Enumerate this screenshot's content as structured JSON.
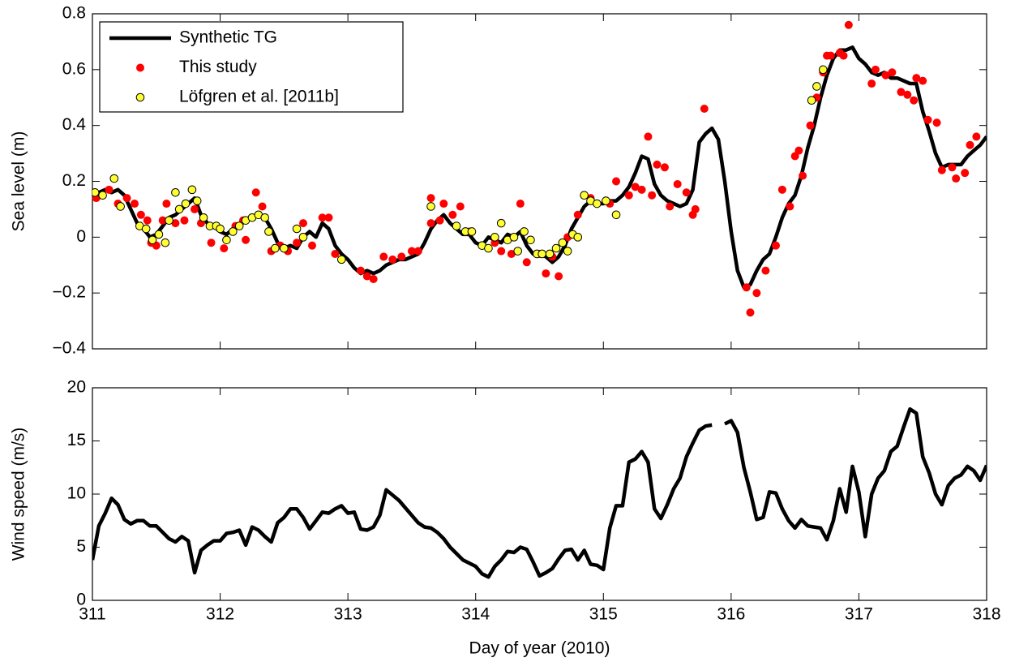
{
  "chart_data": [
    {
      "type": "line",
      "ylabel": "Sea level (m)",
      "xlim": [
        311,
        318
      ],
      "xticks": [
        311,
        312,
        313,
        314,
        315,
        316,
        317,
        318
      ],
      "xtick_labels": false,
      "ylim": [
        -0.4,
        0.8
      ],
      "yticks": [
        {
          "value": -0.4,
          "label": "−0.4"
        },
        {
          "value": -0.2,
          "label": "−0.2"
        },
        0,
        0.2,
        0.4,
        0.6,
        0.8
      ],
      "legend": "upper left",
      "x": [
        311,
        311.05,
        311.1,
        311.15,
        311.2,
        311.25,
        311.3,
        311.35,
        311.4,
        311.45,
        311.5,
        311.55,
        311.6,
        311.65,
        311.7,
        311.75,
        311.8,
        311.85,
        311.9,
        311.95,
        312,
        312.05,
        312.1,
        312.15,
        312.2,
        312.25,
        312.3,
        312.35,
        312.4,
        312.45,
        312.5,
        312.55,
        312.6,
        312.65,
        312.7,
        312.75,
        312.8,
        312.85,
        312.9,
        312.95,
        313,
        313.05,
        313.1,
        313.15,
        313.2,
        313.25,
        313.3,
        313.35,
        313.4,
        313.45,
        313.5,
        313.55,
        313.6,
        313.65,
        313.7,
        313.75,
        313.8,
        313.85,
        313.9,
        313.95,
        314,
        314.05,
        314.1,
        314.15,
        314.2,
        314.25,
        314.3,
        314.35,
        314.4,
        314.45,
        314.5,
        314.55,
        314.6,
        314.65,
        314.7,
        314.75,
        314.8,
        314.85,
        314.9,
        314.95,
        315,
        315.05,
        315.1,
        315.15,
        315.2,
        315.25,
        315.3,
        315.35,
        315.4,
        315.45,
        315.5,
        315.55,
        315.6,
        315.65,
        315.7,
        315.75,
        315.8,
        315.85,
        315.9,
        315.95,
        316,
        316.05,
        316.1,
        316.15,
        316.2,
        316.25,
        316.3,
        316.35,
        316.4,
        316.45,
        316.5,
        316.55,
        316.6,
        316.65,
        316.7,
        316.75,
        316.8,
        316.85,
        316.9,
        316.95,
        317,
        317.05,
        317.1,
        317.15,
        317.2,
        317.25,
        317.3,
        317.35,
        317.4,
        317.45,
        317.5,
        317.55,
        317.6,
        317.65,
        317.7,
        317.75,
        317.8,
        317.85,
        317.9,
        317.95,
        318
      ],
      "series": [
        {
          "name": "Synthetic TG",
          "type": "line",
          "color": "#000000",
          "values": [
            0.15,
            0.16,
            0.17,
            0.16,
            0.17,
            0.15,
            0.1,
            0.05,
            0.03,
            0,
            0.01,
            0.04,
            0.07,
            0.08,
            0.1,
            0.12,
            0.14,
            0.08,
            0.05,
            0.04,
            0.02,
            0.01,
            0.03,
            0.04,
            0.06,
            0.07,
            0.08,
            0.07,
            0.03,
            -0.02,
            -0.04,
            -0.03,
            -0.04,
            0,
            0.02,
            0,
            0.05,
            0.03,
            -0.03,
            -0.06,
            -0.08,
            -0.11,
            -0.13,
            -0.12,
            -0.13,
            -0.12,
            -0.1,
            -0.09,
            -0.08,
            -0.08,
            -0.07,
            -0.06,
            -0.02,
            0.03,
            0.06,
            0.08,
            0.05,
            0.03,
            0.01,
            0.01,
            -0.02,
            -0.03,
            0,
            -0.01,
            -0.02,
            0.01,
            0,
            0.02,
            -0.03,
            -0.06,
            -0.06,
            -0.07,
            -0.09,
            -0.07,
            -0.03,
            0.03,
            0.07,
            0.11,
            0.13,
            0.12,
            0.12,
            0.13,
            0.13,
            0.15,
            0.18,
            0.23,
            0.29,
            0.28,
            0.19,
            0.15,
            0.13,
            0.12,
            0.11,
            0.12,
            0.17,
            0.34,
            0.37,
            0.39,
            0.35,
            0.2,
            0.02,
            -0.12,
            -0.18,
            -0.17,
            -0.12,
            -0.08,
            -0.06,
            0,
            0.07,
            0.12,
            0.15,
            0.22,
            0.32,
            0.4,
            0.5,
            0.58,
            0.64,
            0.67,
            0.67,
            0.68,
            0.64,
            0.62,
            0.59,
            0.58,
            0.59,
            0.57,
            0.57,
            0.56,
            0.55,
            0.55,
            0.45,
            0.38,
            0.3,
            0.25,
            0.26,
            0.26,
            0.26,
            0.29,
            0.31,
            0.33,
            0.36
          ]
        },
        {
          "name": "This study",
          "type": "scatter",
          "color": "#ff0000",
          "x": [
            311.03,
            311.13,
            311.2,
            311.27,
            311.33,
            311.38,
            311.43,
            311.46,
            311.5,
            311.55,
            311.58,
            311.65,
            311.72,
            311.8,
            311.85,
            311.93,
            312.03,
            312.12,
            312.18,
            312.2,
            312.28,
            312.33,
            312.4,
            312.47,
            312.53,
            312.6,
            312.65,
            312.72,
            312.8,
            312.85,
            312.9,
            312.95,
            313.1,
            313.15,
            313.2,
            313.28,
            313.35,
            313.42,
            313.5,
            313.55,
            313.65,
            313.65,
            313.72,
            313.75,
            313.82,
            313.88,
            313.95,
            314.05,
            314.15,
            314.2,
            314.28,
            314.35,
            314.4,
            314.5,
            314.55,
            314.6,
            314.65,
            314.72,
            314.8,
            314.9,
            314.95,
            315.05,
            315.1,
            315.2,
            315.25,
            315.3,
            315.35,
            315.38,
            315.42,
            315.48,
            315.52,
            315.58,
            315.65,
            315.7,
            315.72,
            315.79,
            316.12,
            316.15,
            316.2,
            316.27,
            316.35,
            316.4,
            316.46,
            316.5,
            316.53,
            316.56,
            316.62,
            316.67,
            316.72,
            316.75,
            316.78,
            316.85,
            316.88,
            316.92,
            317.1,
            317.13,
            317.21,
            317.26,
            317.33,
            317.38,
            317.43,
            317.45,
            317.5,
            317.54,
            317.61,
            317.65,
            317.73,
            317.76,
            317.83,
            317.87,
            317.92
          ],
          "values": [
            0.14,
            0.17,
            0.12,
            0.14,
            0.12,
            0.08,
            0.06,
            -0.02,
            -0.03,
            0.06,
            0.12,
            0.05,
            0.06,
            0.1,
            0.05,
            -0.02,
            -0.04,
            0.04,
            0.06,
            -0.01,
            0.16,
            0.11,
            -0.05,
            -0.03,
            -0.05,
            -0.02,
            0.05,
            -0.03,
            0.07,
            0.07,
            -0.06,
            -0.08,
            -0.12,
            -0.14,
            -0.15,
            -0.07,
            -0.08,
            -0.07,
            -0.05,
            -0.05,
            0.14,
            0.05,
            0.06,
            0.12,
            0.08,
            0.11,
            0.02,
            -0.03,
            -0.02,
            -0.05,
            -0.06,
            0.12,
            -0.09,
            -0.06,
            -0.13,
            -0.07,
            -0.14,
            0,
            0.08,
            0.14,
            0.12,
            0.12,
            0.2,
            0.15,
            0.18,
            0.17,
            0.36,
            0.15,
            0.26,
            0.25,
            0.11,
            0.19,
            0.16,
            0.08,
            0.1,
            0.46,
            -0.18,
            -0.27,
            -0.2,
            -0.12,
            -0.03,
            0.17,
            0.11,
            0.29,
            0.31,
            0.22,
            0.4,
            0.5,
            0.59,
            0.65,
            0.65,
            0.66,
            0.65,
            0.76,
            0.55,
            0.6,
            0.58,
            0.59,
            0.52,
            0.51,
            0.49,
            0.57,
            0.56,
            0.42,
            0.41,
            0.24,
            0.25,
            0.21,
            0.23,
            0.33,
            0.36
          ]
        },
        {
          "name": "Löfgren et al. [2011b]",
          "type": "scatter",
          "color": "#ffff33",
          "edgecolor": "#000000",
          "x": [
            311.02,
            311.08,
            311.17,
            311.22,
            311.37,
            311.42,
            311.47,
            311.52,
            311.57,
            311.6,
            311.65,
            311.68,
            311.73,
            311.78,
            311.82,
            311.87,
            311.92,
            311.97,
            312,
            312.05,
            312.1,
            312.15,
            312.2,
            312.25,
            312.3,
            312.35,
            312.38,
            312.43,
            312.5,
            312.6,
            312.65,
            312.95,
            313.65,
            313.85,
            313.92,
            313.97,
            314.05,
            314.1,
            314.15,
            314.2,
            314.25,
            314.3,
            314.33,
            314.38,
            314.43,
            314.48,
            314.52,
            314.58,
            314.63,
            314.68,
            314.72,
            314.76,
            314.8,
            314.85,
            314.9,
            314.95,
            315.02,
            315.1,
            316.63,
            316.67,
            316.72
          ],
          "values": [
            0.16,
            0.15,
            0.21,
            0.11,
            0.04,
            0.03,
            -0.01,
            0.01,
            -0.02,
            0.06,
            0.16,
            0.1,
            0.12,
            0.17,
            0.13,
            0.07,
            0.04,
            0.04,
            0.03,
            -0.01,
            0.02,
            0.04,
            0.06,
            0.07,
            0.08,
            0.07,
            0.02,
            -0.04,
            -0.04,
            0.03,
            0,
            -0.08,
            0.11,
            0.04,
            0.02,
            0.02,
            -0.03,
            -0.04,
            0,
            0.05,
            -0.01,
            0,
            -0.05,
            0.02,
            -0.01,
            -0.06,
            -0.06,
            -0.06,
            -0.04,
            -0.02,
            -0.05,
            0.01,
            0,
            0.15,
            0.13,
            0.12,
            0.13,
            0.08,
            0.49,
            0.54,
            0.6
          ]
        }
      ]
    },
    {
      "type": "line",
      "ylabel": "Wind speed (m/s)",
      "xlabel": "Day of year (2010)",
      "xlim": [
        311,
        318
      ],
      "xticks": [
        311,
        312,
        313,
        314,
        315,
        316,
        317,
        318
      ],
      "xtick_labels": true,
      "ylim": [
        0,
        20
      ],
      "yticks": [
        0,
        5,
        10,
        15,
        20
      ],
      "x": [
        311,
        311.05,
        311.1,
        311.15,
        311.2,
        311.25,
        311.3,
        311.35,
        311.4,
        311.45,
        311.5,
        311.55,
        311.6,
        311.65,
        311.7,
        311.75,
        311.8,
        311.85,
        311.9,
        311.95,
        312,
        312.05,
        312.1,
        312.15,
        312.2,
        312.25,
        312.3,
        312.35,
        312.4,
        312.45,
        312.5,
        312.55,
        312.6,
        312.65,
        312.7,
        312.75,
        312.8,
        312.85,
        312.9,
        312.95,
        313,
        313.05,
        313.1,
        313.15,
        313.2,
        313.25,
        313.3,
        313.35,
        313.4,
        313.45,
        313.5,
        313.55,
        313.6,
        313.65,
        313.7,
        313.75,
        313.8,
        313.85,
        313.9,
        313.95,
        314,
        314.05,
        314.1,
        314.15,
        314.2,
        314.25,
        314.3,
        314.35,
        314.4,
        314.45,
        314.5,
        314.55,
        314.6,
        314.65,
        314.7,
        314.75,
        314.8,
        314.85,
        314.9,
        314.95,
        315,
        315.05,
        315.1,
        315.15,
        315.2,
        315.25,
        315.3,
        315.35,
        315.4,
        315.45,
        315.5,
        315.55,
        315.6,
        315.65,
        315.7,
        315.75,
        315.8,
        315.85,
        315.9,
        315.95,
        316,
        316.05,
        316.1,
        316.15,
        316.2,
        316.25,
        316.3,
        316.35,
        316.4,
        316.45,
        316.5,
        316.55,
        316.6,
        316.65,
        316.7,
        316.75,
        316.8,
        316.85,
        316.9,
        316.95,
        317,
        317.05,
        317.1,
        317.15,
        317.2,
        317.25,
        317.3,
        317.35,
        317.4,
        317.45,
        317.5,
        317.55,
        317.6,
        317.65,
        317.7,
        317.75,
        317.8,
        317.85,
        317.9,
        317.95,
        318
      ],
      "series": [
        {
          "type": "line",
          "color": "#000000",
          "values": [
            3.8,
            7,
            8.2,
            9.6,
            9,
            7.6,
            7.2,
            7.5,
            7.5,
            7,
            7,
            6.4,
            5.8,
            5.5,
            6,
            5.6,
            2.6,
            4.7,
            5.2,
            5.6,
            5.6,
            6.3,
            6.4,
            6.6,
            5.2,
            6.9,
            6.6,
            6,
            5.5,
            7.3,
            7.8,
            8.6,
            8.6,
            7.8,
            6.7,
            7.5,
            8.3,
            8.2,
            8.6,
            8.9,
            8.2,
            8.3,
            6.7,
            6.6,
            6.9,
            8,
            10.4,
            9.9,
            9.4,
            8.7,
            8,
            7.3,
            6.9,
            6.8,
            6.4,
            5.8,
            5,
            4.4,
            3.8,
            3.5,
            3.2,
            2.5,
            2.2,
            3.2,
            3.8,
            4.6,
            4.5,
            5,
            4.8,
            3.6,
            2.3,
            2.6,
            3,
            3.9,
            4.7,
            4.8,
            3.8,
            4.7,
            3.4,
            3.3,
            2.9,
            6.8,
            8.9,
            8.9,
            13,
            13.3,
            14,
            13,
            8.6,
            7.7,
            9,
            10.5,
            11.5,
            13.5,
            14.8,
            16,
            16.4,
            16.5,
            null,
            16.6,
            16.9,
            15.8,
            12.5,
            10.2,
            7.6,
            7.8,
            10.2,
            10.1,
            8.6,
            7.5,
            6.8,
            7.6,
            7,
            6.9,
            6.8,
            5.7,
            7.5,
            10.5,
            8.3,
            12.6,
            10.2,
            6,
            10,
            11.5,
            12.2,
            14,
            14.5,
            16.3,
            18,
            17.6,
            13.5,
            12,
            10,
            9,
            10.8,
            11.5,
            11.8,
            12.6,
            12.2,
            11.3,
            12.7
          ]
        }
      ]
    }
  ]
}
